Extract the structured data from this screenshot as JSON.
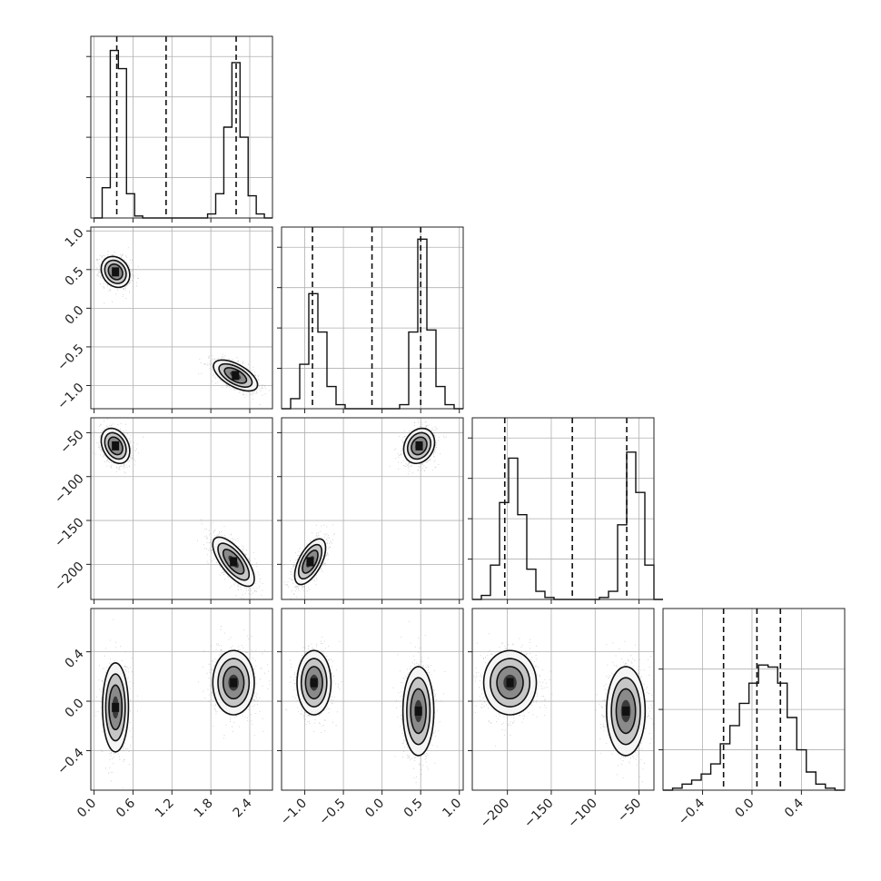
{
  "chart_data": {
    "type": "corner",
    "title": "",
    "parameters": [
      {
        "index": 0,
        "axis_range": [
          -0.05,
          2.75
        ],
        "ticks": [
          0.0,
          0.6,
          1.2,
          1.8,
          2.4
        ],
        "tick_labels": [
          "0.0",
          "0.6",
          "1.2",
          "1.8",
          "2.4"
        ]
      },
      {
        "index": 1,
        "axis_range": [
          -1.3,
          1.05
        ],
        "ticks": [
          -1.0,
          -0.5,
          0.0,
          0.5,
          1.0
        ],
        "tick_labels": [
          "−1.0",
          "−0.5",
          "0.0",
          "0.5",
          "1.0"
        ]
      },
      {
        "index": 2,
        "axis_range": [
          -240,
          -33
        ],
        "ticks": [
          -200,
          -150,
          -100,
          -50
        ],
        "tick_labels": [
          "−200",
          "−150",
          "−100",
          "−50"
        ]
      },
      {
        "index": 3,
        "axis_range": [
          -0.72,
          0.75
        ],
        "ticks": [
          -0.4,
          0.0,
          0.4
        ],
        "tick_labels": [
          "−0.4",
          "0.0",
          "0.4"
        ]
      }
    ],
    "histograms": [
      {
        "param": 0,
        "counts": [
          0.0,
          0.15,
          0.83,
          0.74,
          0.12,
          0.01,
          0,
          0,
          0,
          0,
          0,
          0,
          0,
          0,
          0.02,
          0.12,
          0.45,
          0.77,
          0.4,
          0.11,
          0.02,
          0.0
        ],
        "bin_start": 0.0,
        "bin_width": 0.125,
        "y_ticks": [
          0.2,
          0.4,
          0.6,
          0.8
        ],
        "quantiles": [
          0.35,
          1.11,
          2.19
        ]
      },
      {
        "param": 1,
        "counts": [
          0.0,
          0.05,
          0.22,
          0.57,
          0.38,
          0.11,
          0.02,
          0,
          0,
          0,
          0,
          0,
          0,
          0.02,
          0.38,
          0.84,
          0.39,
          0.11,
          0.02,
          0.0
        ],
        "bin_start": -1.3,
        "bin_width": 0.1175,
        "y_ticks": [
          0.2,
          0.4,
          0.6,
          0.8
        ],
        "quantiles": [
          -0.9,
          -0.13,
          0.5
        ]
      },
      {
        "param": 2,
        "counts": [
          0.0,
          0.02,
          0.17,
          0.48,
          0.7,
          0.42,
          0.15,
          0.04,
          0.01,
          0,
          0,
          0,
          0,
          0,
          0.01,
          0.04,
          0.37,
          0.73,
          0.53,
          0.17,
          0.0
        ],
        "bin_start": -240,
        "bin_width": 10.35,
        "y_ticks": [
          0.2,
          0.4,
          0.6,
          0.8
        ],
        "quantiles": [
          -203,
          -126,
          -64
        ]
      },
      {
        "param": 3,
        "counts": [
          0.0,
          0.01,
          0.03,
          0.05,
          0.08,
          0.13,
          0.23,
          0.32,
          0.43,
          0.53,
          0.62,
          0.61,
          0.53,
          0.36,
          0.2,
          0.09,
          0.03,
          0.01,
          0.0
        ],
        "bin_start": -0.72,
        "bin_width": 0.0773,
        "y_ticks": [
          0.2,
          0.4,
          0.6
        ],
        "quantiles": [
          -0.23,
          0.04,
          0.23
        ]
      }
    ],
    "pairs": [
      {
        "x": 0,
        "y": 1,
        "modes": [
          {
            "cx": 0.33,
            "cy": 0.47,
            "sx": 0.11,
            "sy": 0.1,
            "rho": -0.2,
            "w": 0.5
          },
          {
            "cx": 2.18,
            "cy": -0.87,
            "sx": 0.17,
            "sy": 0.1,
            "rho": -0.6,
            "w": 0.5
          }
        ]
      },
      {
        "x": 0,
        "y": 2,
        "modes": [
          {
            "cx": 0.33,
            "cy": -65,
            "sx": 0.11,
            "sy": 10,
            "rho": -0.3,
            "w": 0.5
          },
          {
            "cx": 2.15,
            "cy": -197,
            "sx": 0.16,
            "sy": 14,
            "rho": -0.7,
            "w": 0.5
          }
        ]
      },
      {
        "x": 1,
        "y": 2,
        "modes": [
          {
            "cx": 0.48,
            "cy": -65,
            "sx": 0.1,
            "sy": 10,
            "rho": 0.2,
            "w": 0.5
          },
          {
            "cx": -0.93,
            "cy": -197,
            "sx": 0.1,
            "sy": 13,
            "rho": 0.6,
            "w": 0.5
          }
        ]
      },
      {
        "x": 0,
        "y": 3,
        "modes": [
          {
            "cx": 0.33,
            "cy": -0.05,
            "sx": 0.1,
            "sy": 0.18,
            "rho": 0.0,
            "w": 0.5
          },
          {
            "cx": 2.15,
            "cy": 0.15,
            "sx": 0.16,
            "sy": 0.13,
            "rho": 0.0,
            "w": 0.5
          }
        ]
      },
      {
        "x": 1,
        "y": 3,
        "modes": [
          {
            "cx": -0.88,
            "cy": 0.15,
            "sx": 0.11,
            "sy": 0.13,
            "rho": 0.0,
            "w": 0.5
          },
          {
            "cx": 0.47,
            "cy": -0.08,
            "sx": 0.1,
            "sy": 0.18,
            "rho": 0.0,
            "w": 0.5
          }
        ]
      },
      {
        "x": 2,
        "y": 3,
        "modes": [
          {
            "cx": -197,
            "cy": 0.15,
            "sx": 15,
            "sy": 0.13,
            "rho": 0.0,
            "w": 0.5
          },
          {
            "cx": -65,
            "cy": -0.08,
            "sx": 11,
            "sy": 0.18,
            "rho": 0.0,
            "w": 0.5
          }
        ]
      }
    ],
    "grid": true,
    "colors": {
      "line": "#111111",
      "grid": "#b0b0b0",
      "points": "#8c8c8c",
      "contour_fill": [
        "#f5f5f5",
        "#c6c6c6",
        "#8a8a8a",
        "#3a3a3a"
      ]
    }
  }
}
